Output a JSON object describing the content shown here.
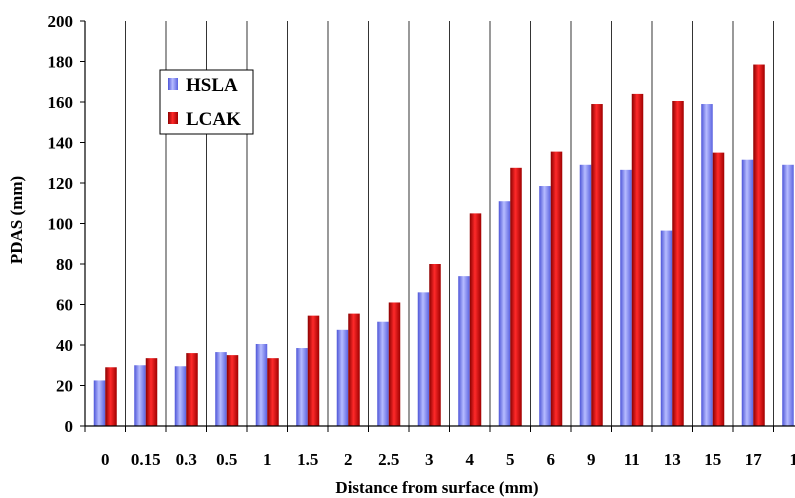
{
  "chart_data": {
    "type": "bar",
    "title": "",
    "xlabel": "Distance from surface (mm)",
    "ylabel": "PDAS (mm)",
    "ylim": [
      0,
      200
    ],
    "yticks": [
      0,
      20,
      40,
      60,
      80,
      100,
      120,
      140,
      160,
      180,
      200
    ],
    "grid": "vertical",
    "legend_position": "top-left",
    "categories": [
      "0",
      "0.15",
      "0.3",
      "0.5",
      "1",
      "1.5",
      "2",
      "2.5",
      "3",
      "4",
      "5",
      "6",
      "9",
      "11",
      "13",
      "15",
      "17",
      "1"
    ],
    "series": [
      {
        "name": "HSLA",
        "color": "#7e86f0",
        "values": [
          22.5,
          30,
          29.5,
          36.5,
          40.5,
          38.5,
          47.5,
          51.5,
          66,
          74,
          111,
          118.5,
          129,
          126.5,
          96.5,
          159,
          131.5,
          129
        ]
      },
      {
        "name": "LCAK",
        "color": "#d41010",
        "values": [
          29,
          33.5,
          36,
          35,
          33.5,
          54.5,
          55.5,
          61,
          80,
          105,
          127.5,
          135.5,
          159,
          164,
          160.5,
          135,
          178.5,
          null
        ]
      }
    ]
  }
}
